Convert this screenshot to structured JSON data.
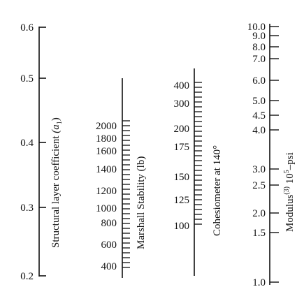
{
  "nomograph": {
    "scales": [
      {
        "id": "a1",
        "title_main": "Structural layer coefficient ",
        "title_sym": "(a",
        "title_sub": "1",
        "title_end": ")",
        "ticks": [
          {
            "label": "0.6",
            "value": 0.6,
            "major": true
          },
          {
            "label": "0.5",
            "value": 0.5,
            "major": true
          },
          {
            "label": "0.4",
            "value": 0.4,
            "major": true
          },
          {
            "label": "0.3",
            "value": 0.3,
            "major": true
          },
          {
            "label": "0.2",
            "value": 0.2,
            "major": true
          }
        ]
      },
      {
        "id": "marshall",
        "title_main": "Marshall Stability (lb)",
        "ticks": [
          {
            "label": "2000",
            "value": 2000
          },
          {
            "label": "1800",
            "value": 1800
          },
          {
            "label": "1600",
            "value": 1600
          },
          {
            "label": "1400",
            "value": 1400
          },
          {
            "label": "1200",
            "value": 1200
          },
          {
            "label": "1000",
            "value": 1000
          },
          {
            "label": "800",
            "value": 800
          },
          {
            "label": "600",
            "value": 600
          },
          {
            "label": "400",
            "value": 400
          }
        ]
      },
      {
        "id": "cohesiometer",
        "title_main": "Cohesiometer at 140°",
        "ticks": [
          {
            "label": "400",
            "value": 400
          },
          {
            "label": "300",
            "value": 300
          },
          {
            "label": "200",
            "value": 200
          },
          {
            "label": "175",
            "value": 175
          },
          {
            "label": "150",
            "value": 150
          },
          {
            "label": "125",
            "value": 125
          },
          {
            "label": "100",
            "value": 100
          }
        ]
      },
      {
        "id": "modulus",
        "title_main": "Modulus",
        "title_sup": "(3)",
        "title_mid": " 10",
        "title_sup2": "5",
        "title_end": "–psi",
        "ticks": [
          {
            "label": "10.0",
            "value": 10.0
          },
          {
            "label": "9.0",
            "value": 9.0
          },
          {
            "label": "8.0",
            "value": 8.0
          },
          {
            "label": "7.0",
            "value": 7.0
          },
          {
            "label": "6.0",
            "value": 6.0
          },
          {
            "label": "5.0",
            "value": 5.0
          },
          {
            "label": "4.5",
            "value": 4.5
          },
          {
            "label": "4.0",
            "value": 4.0
          },
          {
            "label": "3.0",
            "value": 3.0
          },
          {
            "label": "2.5",
            "value": 2.5
          },
          {
            "label": "2.0",
            "value": 2.0
          },
          {
            "label": "1.5",
            "value": 1.5
          },
          {
            "label": "1.0",
            "value": 1.0
          }
        ]
      }
    ]
  }
}
